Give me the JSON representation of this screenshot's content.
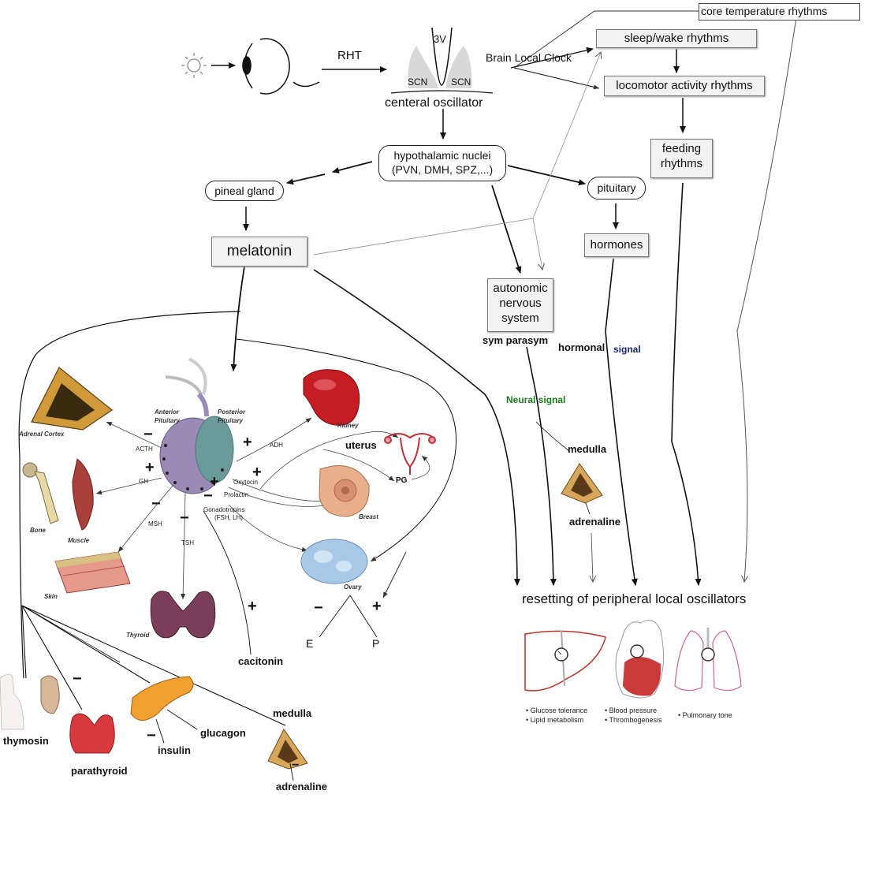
{
  "diagram": {
    "rht": "RHT",
    "v3": "3V",
    "scn": "SCN",
    "central_oscillator": "centeral oscillator",
    "brain_local_clock": "Brain Local Clock",
    "core_temperature": "core temperature rhythms",
    "sleep_wake": "sleep/wake rhythms",
    "locomotor": "locomotor activity rhythms",
    "feeding_line1": "feeding",
    "feeding_line2": "rhythms",
    "hypothalamic_line1": "hypothalamic nuclei",
    "hypothalamic_line2": "(PVN, DMH, SPZ,...)",
    "pineal_gland": "pineal gland",
    "pituitary": "pituitary",
    "melatonin": "melatonin",
    "hormones": "hormones",
    "autonomic_line1": "autonomic",
    "autonomic_line2": "nervous",
    "autonomic_line3": "system",
    "sym_parasym": "sym parasym",
    "hormonal": "hormonal",
    "signal": "signal",
    "neural_signal": "Neural signal",
    "medulla_right": "medulla",
    "adrenaline_right": "adrenaline",
    "resetting": "resetting of peripheral local oscillators",
    "liver_caption_1": "• Glucose tolerance",
    "liver_caption_2": "• Lipid metabolism",
    "heart_caption_1": "• Blood pressure",
    "heart_caption_2": "• Thrombogenesis",
    "lung_caption": "• Pulmonary tone",
    "anterior_pituitary_1": "Anterior",
    "anterior_pituitary_2": "Pituitary",
    "posterior_pituitary_1": "Posterior",
    "posterior_pituitary_2": "Pituitary",
    "adrenal_cortex": "Adrenal Cortex",
    "kidney": "Kidney",
    "uterus": "uterus",
    "pg": "PG",
    "breast": "Breast",
    "bone": "Bone",
    "muscle": "Muscle",
    "skin": "Skin",
    "thyroid": "Thyroid",
    "ovary": "Ovary",
    "acth": "ACTH",
    "adh": "ADH",
    "gh": "GH",
    "oxytocin": "Oxytocin",
    "prolactin": "Prolactin",
    "gonadotropins_1": "Gonadotropins",
    "gonadotropins_2": "(FSH, LH)",
    "msh": "MSH",
    "tsh": "TSH",
    "e": "E",
    "p": "P",
    "cacitonin": "cacitonin",
    "thymosin": "thymosin",
    "parathyroid": "parathyroid",
    "insulin": "insulin",
    "glucagon": "glucagon",
    "medulla_left": "medulla",
    "adrenaline_left": "adrenaline",
    "plus": "+",
    "minus": "−"
  },
  "colors": {
    "neural_signal": "#1a7a1a",
    "signal": "#1a2a6a",
    "box_fill": "#f2f2f2",
    "adrenal": "#c8952e",
    "kidney": "#c01a20",
    "thyroid": "#7a3d5a",
    "ovary": "#9cc0e0",
    "pituitary_anterior": "#8a7aa8",
    "pituitary_posterior": "#6a9a9a",
    "pancreas": "#f0a030",
    "liver": "#c0302a",
    "heart": "#b01818",
    "lung": "#d060a0"
  },
  "icons": [
    "sun-icon",
    "eye-icon",
    "scn-brain-icon",
    "adrenal-cortex-icon",
    "kidney-icon",
    "uterus-icon",
    "bone-icon",
    "muscle-icon",
    "pituitary-icon",
    "breast-icon",
    "skin-icon",
    "thyroid-icon",
    "ovary-icon",
    "thymus-icon",
    "parathyroid-icon",
    "pancreas-icon",
    "adrenal-medulla-icon",
    "liver-icon",
    "heart-icon",
    "lung-icon",
    "clock-icon"
  ]
}
